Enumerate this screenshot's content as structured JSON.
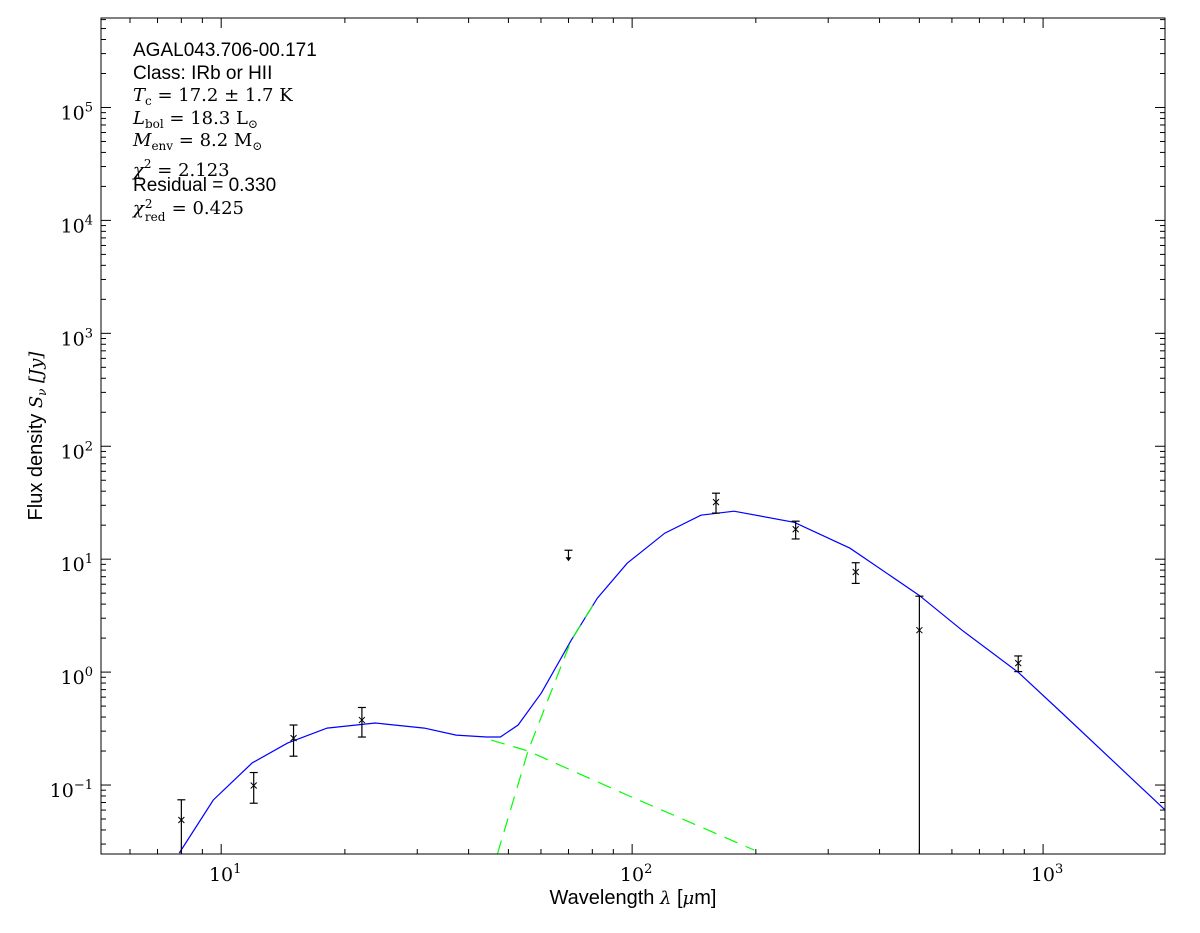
{
  "chart_data": {
    "type": "scatter",
    "xlabel": {
      "text": "Wavelength",
      "symbol": "λ",
      "unit_open": "[",
      "unit_mu": "μ",
      "unit_rest": "m]"
    },
    "ylabel": {
      "text": "Flux density",
      "symbol": "S",
      "sub": "ν",
      "unit": "[Jy]"
    },
    "xscale": "log",
    "yscale": "log",
    "xlim": [
      5.1,
      1980
    ],
    "ylim": [
      0.0245,
      620000
    ],
    "x_ticks": [
      {
        "base": "10",
        "exp": "1",
        "value": 10
      },
      {
        "base": "10",
        "exp": "2",
        "value": 100
      },
      {
        "base": "10",
        "exp": "3",
        "value": 1000
      }
    ],
    "y_ticks": [
      {
        "base": "10",
        "exp": "−1",
        "value": 0.1
      },
      {
        "base": "10",
        "exp": "0",
        "value": 1
      },
      {
        "base": "10",
        "exp": "1",
        "value": 10
      },
      {
        "base": "10",
        "exp": "2",
        "value": 100
      },
      {
        "base": "10",
        "exp": "3",
        "value": 1000
      },
      {
        "base": "10",
        "exp": "4",
        "value": 10000
      },
      {
        "base": "10",
        "exp": "5",
        "value": 100000
      }
    ],
    "grid": false,
    "annotation": {
      "source": "AGAL043.706-00.171",
      "class_line": "Class: IRb or HII",
      "tc": {
        "sym": "T",
        "sub": "c",
        "rest": " = 17.2 ± 1.7 K"
      },
      "lbol": {
        "sym": "L",
        "sub": "bol",
        "rest": " = 18.3 L",
        "rest_sub": "⊙"
      },
      "menv": {
        "sym": "M",
        "sub": "env",
        "rest": " = 8.2 M",
        "rest_sub": "⊙"
      },
      "chi2": {
        "sym": "χ",
        "sup": "2",
        "rest": " = 2.123"
      },
      "residual": "Residual = 0.330",
      "chi2red": {
        "sym": "χ",
        "sup": "2",
        "sub": "red",
        "rest": " = 0.425"
      }
    },
    "points": [
      {
        "x": 8,
        "y": 0.049,
        "yerr": 0.025
      },
      {
        "x": 12,
        "y": 0.099,
        "yerr": 0.03
      },
      {
        "x": 15,
        "y": 0.26,
        "yerr": 0.08
      },
      {
        "x": 22,
        "y": 0.376,
        "yerr": 0.11
      },
      {
        "x": 160,
        "y": 32,
        "yerr": 6.4
      },
      {
        "x": 250,
        "y": 18.4,
        "yerr": 3.3
      },
      {
        "x": 350,
        "y": 7.7,
        "yerr": 1.6
      },
      {
        "x": 500,
        "y": 2.35,
        "yerr": 2.35
      },
      {
        "x": 870,
        "y": 1.2,
        "yerr": 0.19
      }
    ],
    "upper_limits": [
      {
        "x": 70,
        "y": 12
      }
    ],
    "series": [
      {
        "style": "solid",
        "color": "#0000ff",
        "x": [
          7.91,
          9.57,
          11.9,
          14.5,
          18.1,
          23.7,
          31.2,
          37.3,
          44.2,
          47.8,
          52.8,
          60.1,
          71.1,
          82.3,
          97.3,
          120,
          147,
          177,
          248,
          339,
          499,
          635,
          869,
          1112,
          1982
        ],
        "y": [
          0.025,
          0.0737,
          0.157,
          0.235,
          0.319,
          0.354,
          0.319,
          0.277,
          0.266,
          0.266,
          0.34,
          0.652,
          1.92,
          4.52,
          9.22,
          17.0,
          24.5,
          26.6,
          21.2,
          12.5,
          4.8,
          2.35,
          1.0,
          0.434,
          0.06
        ]
      },
      {
        "style": "dashed",
        "color": "#00ff00",
        "x": [
          45.4,
          55.8,
          98.4,
          198
        ],
        "y": [
          0.25,
          0.2,
          0.08,
          0.0266
        ]
      },
      {
        "style": "dashed",
        "color": "#00ff00",
        "x": [
          47.0,
          55.8,
          71.1,
          82.3
        ],
        "y": [
          0.0245,
          0.2,
          1.92,
          4.52
        ]
      }
    ]
  }
}
